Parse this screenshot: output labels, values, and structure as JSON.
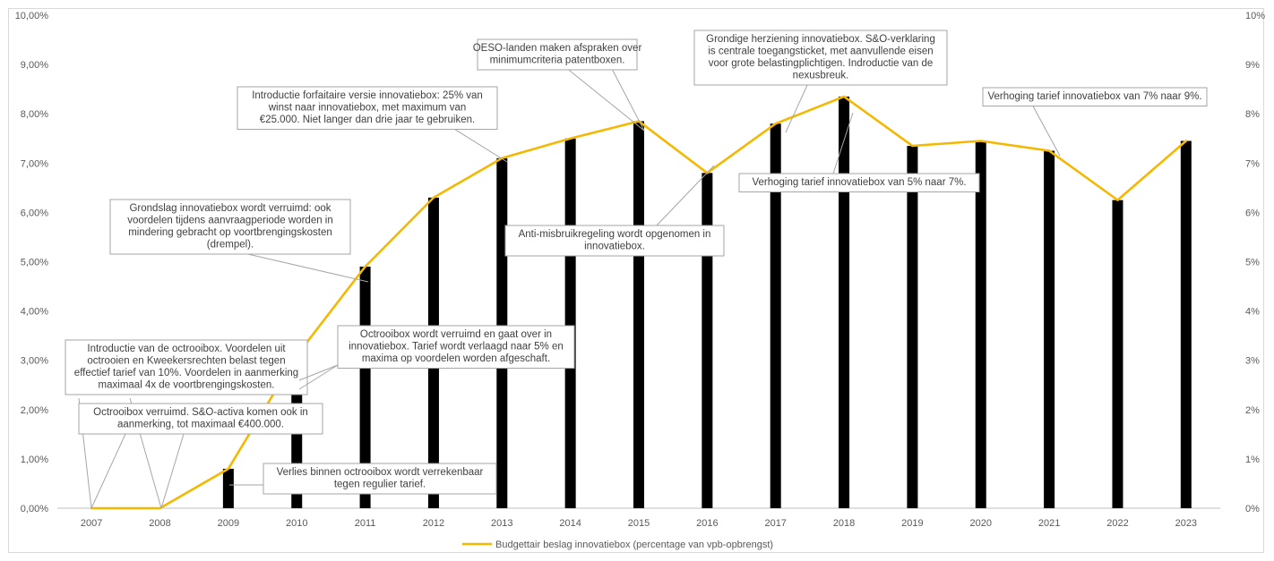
{
  "chart_data": {
    "type": "bar",
    "categories": [
      "2007",
      "2008",
      "2009",
      "2010",
      "2011",
      "2012",
      "2013",
      "2014",
      "2015",
      "2016",
      "2017",
      "2018",
      "2019",
      "2020",
      "2021",
      "2022",
      "2023"
    ],
    "series": [
      {
        "values": [
          0.0,
          0.0,
          0.8,
          3.1,
          4.9,
          6.3,
          7.1,
          7.5,
          7.85,
          6.8,
          7.8,
          8.35,
          7.35,
          7.45,
          7.25,
          6.25,
          7.45
        ]
      },
      {
        "name": "Budgettair beslag innovatiebox (percentage van vpb-opbrengst)",
        "type": "line",
        "color": "#f5b800",
        "values": [
          0.0,
          0.0,
          0.8,
          3.1,
          4.9,
          6.3,
          7.1,
          7.5,
          7.85,
          6.8,
          7.8,
          8.35,
          7.35,
          7.45,
          7.25,
          6.25,
          7.45
        ]
      }
    ],
    "ylim": [
      0,
      10
    ],
    "left_axis_ticks": [
      "0,00%",
      "1,00%",
      "2,00%",
      "3,00%",
      "4,00%",
      "5,00%",
      "6,00%",
      "7,00%",
      "8,00%",
      "9,00%",
      "10,00%"
    ],
    "right_axis_ticks": [
      "0%",
      "1%",
      "2%",
      "3%",
      "4%",
      "5%",
      "6%",
      "7%",
      "8%",
      "9%",
      "10%"
    ],
    "legend_position": "bottom",
    "annotations": [
      {
        "lines": [
          "Introductie van de octrooibox. Voordelen uit",
          "octrooien en Kweekersrechten belast tegen",
          "effectief tarief van 10%. Voordelen in aanmerking",
          "maximaal 4x de voortbrengingskosten."
        ]
      },
      {
        "lines": [
          "Octrooibox verruimd. S&O-activa komen ook in",
          "aanmerking, tot maximaal €400.000."
        ]
      },
      {
        "lines": [
          "Verlies binnen octrooibox wordt verrekenbaar",
          "tegen regulier tarief."
        ]
      },
      {
        "lines": [
          "Octrooibox wordt verruimd en gaat over in",
          "innovatiebox. Tarief wordt verlaagd naar 5% en",
          "maxima op voordelen worden afgeschaft."
        ]
      },
      {
        "lines": [
          "Grondslag innovatiebox wordt verruimd: ook",
          "voordelen tijdens aanvraagperiode worden in",
          "mindering gebracht op voortbrengingskosten",
          "(drempel)."
        ]
      },
      {
        "lines": [
          "Introductie forfaitaire versie innovatiebox: 25% van",
          "winst naar innovatiebox, met maximum van",
          "€25.000. Niet langer dan drie jaar te gebruiken."
        ]
      },
      {
        "lines": [
          "OESO-landen maken afspraken over",
          "minimumcriteria patentboxen."
        ]
      },
      {
        "lines": [
          "Anti-misbruikregeling wordt opgenomen in",
          "innovatiebox."
        ]
      },
      {
        "lines": [
          "Grondige herziening innovatiebox. S&O-verklaring",
          "is centrale toegangsticket, met aanvullende eisen",
          "voor grote belastingplichtigen. Indroductie van de",
          "nexusbreuk."
        ]
      },
      {
        "lines": [
          "Verhoging tarief innovatiebox van 5% naar 7%."
        ]
      },
      {
        "lines": [
          "Verhoging tarief innovatiebox van 7% naar 9%."
        ]
      }
    ]
  }
}
